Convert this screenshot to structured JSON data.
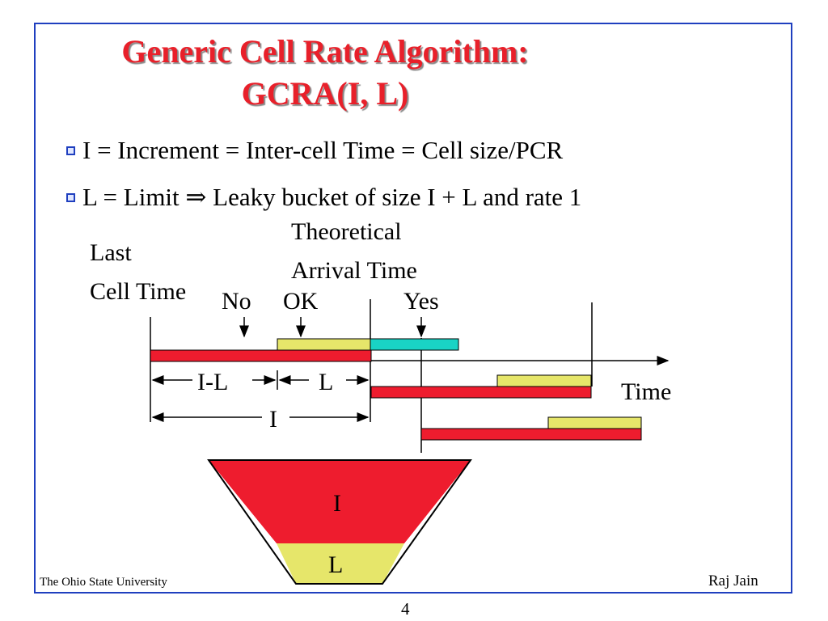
{
  "title": {
    "line1": "Generic Cell Rate Algorithm:",
    "line2": "GCRA(I, L)"
  },
  "bullets": [
    {
      "text": "I = Increment = Inter-cell Time = Cell size/PCR"
    },
    {
      "text": "L = Limit ⇒ Leaky bucket of size I + L and rate 1"
    }
  ],
  "diagram": {
    "theoretical_label_line1": "Theoretical",
    "theoretical_label_line2": "Arrival Time",
    "last_cell_line1": "Last",
    "last_cell_line2": "Cell Time",
    "marker_no": "No",
    "marker_ok": "OK",
    "marker_yes": "Yes",
    "interval_i_minus_l": "I-L",
    "interval_l": "L",
    "interval_i": "I",
    "time_axis_label": "Time",
    "bucket_top_label": "I",
    "bucket_bottom_label": "L",
    "colors": {
      "red_bar": "#ee1c2e",
      "yellow_bar": "#e6e66a",
      "cyan_bar": "#19d3c5",
      "bucket_red": "#ee1c2e",
      "bucket_yellow": "#e6e66a"
    }
  },
  "footer": {
    "institution": "The Ohio State University",
    "author": "Raj Jain",
    "page_number": "4"
  }
}
